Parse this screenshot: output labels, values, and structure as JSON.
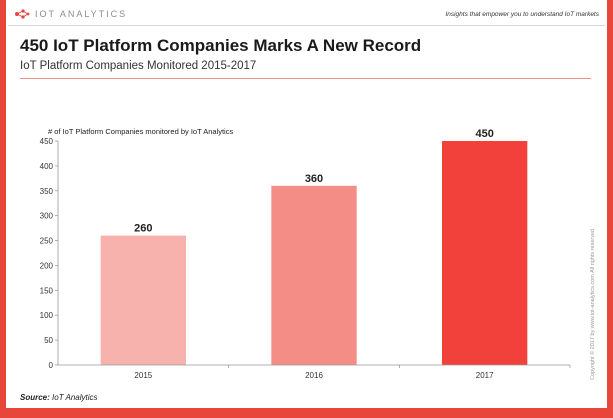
{
  "header": {
    "logo_text": "IOT ANALYTICS",
    "tagline": "Insights that empower you to understand IoT markets"
  },
  "title": "450 IoT Platform Companies Marks A New Record",
  "subtitle": "IoT Platform Companies Monitored 2015-2017",
  "source": {
    "label": "Source:",
    "text": "IoT Analytics"
  },
  "copyright": "Copyright © 2017 by www.iot-analytics.com All rights reserved",
  "colors": {
    "accent": "#e8463a",
    "bar_2015": "#f8b2ad",
    "bar_2016": "#f48d86",
    "bar_2017": "#f1413a"
  },
  "chart_data": {
    "type": "bar",
    "title": "",
    "ylabel": "# of IoT Platform Companies monitored by IoT Analytics",
    "xlabel": "",
    "categories": [
      "2015",
      "2016",
      "2017"
    ],
    "values": [
      260,
      360,
      450
    ],
    "ylim": [
      0,
      450
    ],
    "yticks": [
      0,
      50,
      100,
      150,
      200,
      250,
      300,
      350,
      400,
      450
    ],
    "grid": false,
    "legend": "none"
  }
}
